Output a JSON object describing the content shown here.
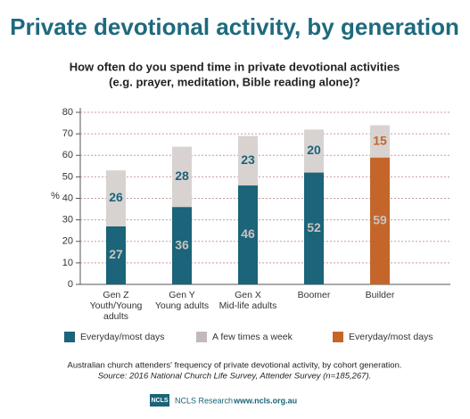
{
  "chart_data": {
    "type": "stacked_bar",
    "title": "Private devotional activity, by generation",
    "subtitle": [
      "How often do you spend time in private devotional activities",
      "(e.g. prayer, meditation, Bible reading alone)?"
    ],
    "y_label": "%",
    "categories": [
      "Gen Z",
      "Gen Y",
      "Gen X",
      "Boomer",
      "Builder"
    ],
    "category_sublabels": [
      "Youth/Young adults",
      "Young adults",
      "Mid-life adults",
      null,
      null
    ],
    "series": [
      {
        "name": "Everyday/most days",
        "color": "#1b6479",
        "values": [
          27,
          36,
          46,
          52,
          null
        ]
      },
      {
        "name": "A few times a week",
        "color": "#d8d3d0",
        "legend_color": "#c4b8bf",
        "values": [
          26,
          28,
          23,
          20,
          15
        ]
      },
      {
        "name": "Everyday/most days",
        "color": "#c4662a",
        "values": [
          null,
          null,
          null,
          null,
          59
        ]
      }
    ],
    "ylim": [
      0,
      80
    ],
    "yticks": [
      0,
      10,
      20,
      30,
      40,
      50,
      60,
      70,
      80
    ],
    "grid": true,
    "footnote": "Australian church attenders' frequency of private devotional activity, by cohort generation.",
    "source": "Source: 2016 National Church Life Survey, Attender Survey (n=185,267).",
    "logo": "NCLS",
    "credit": "NCLS Research",
    "url": "www.ncls.org.au"
  }
}
